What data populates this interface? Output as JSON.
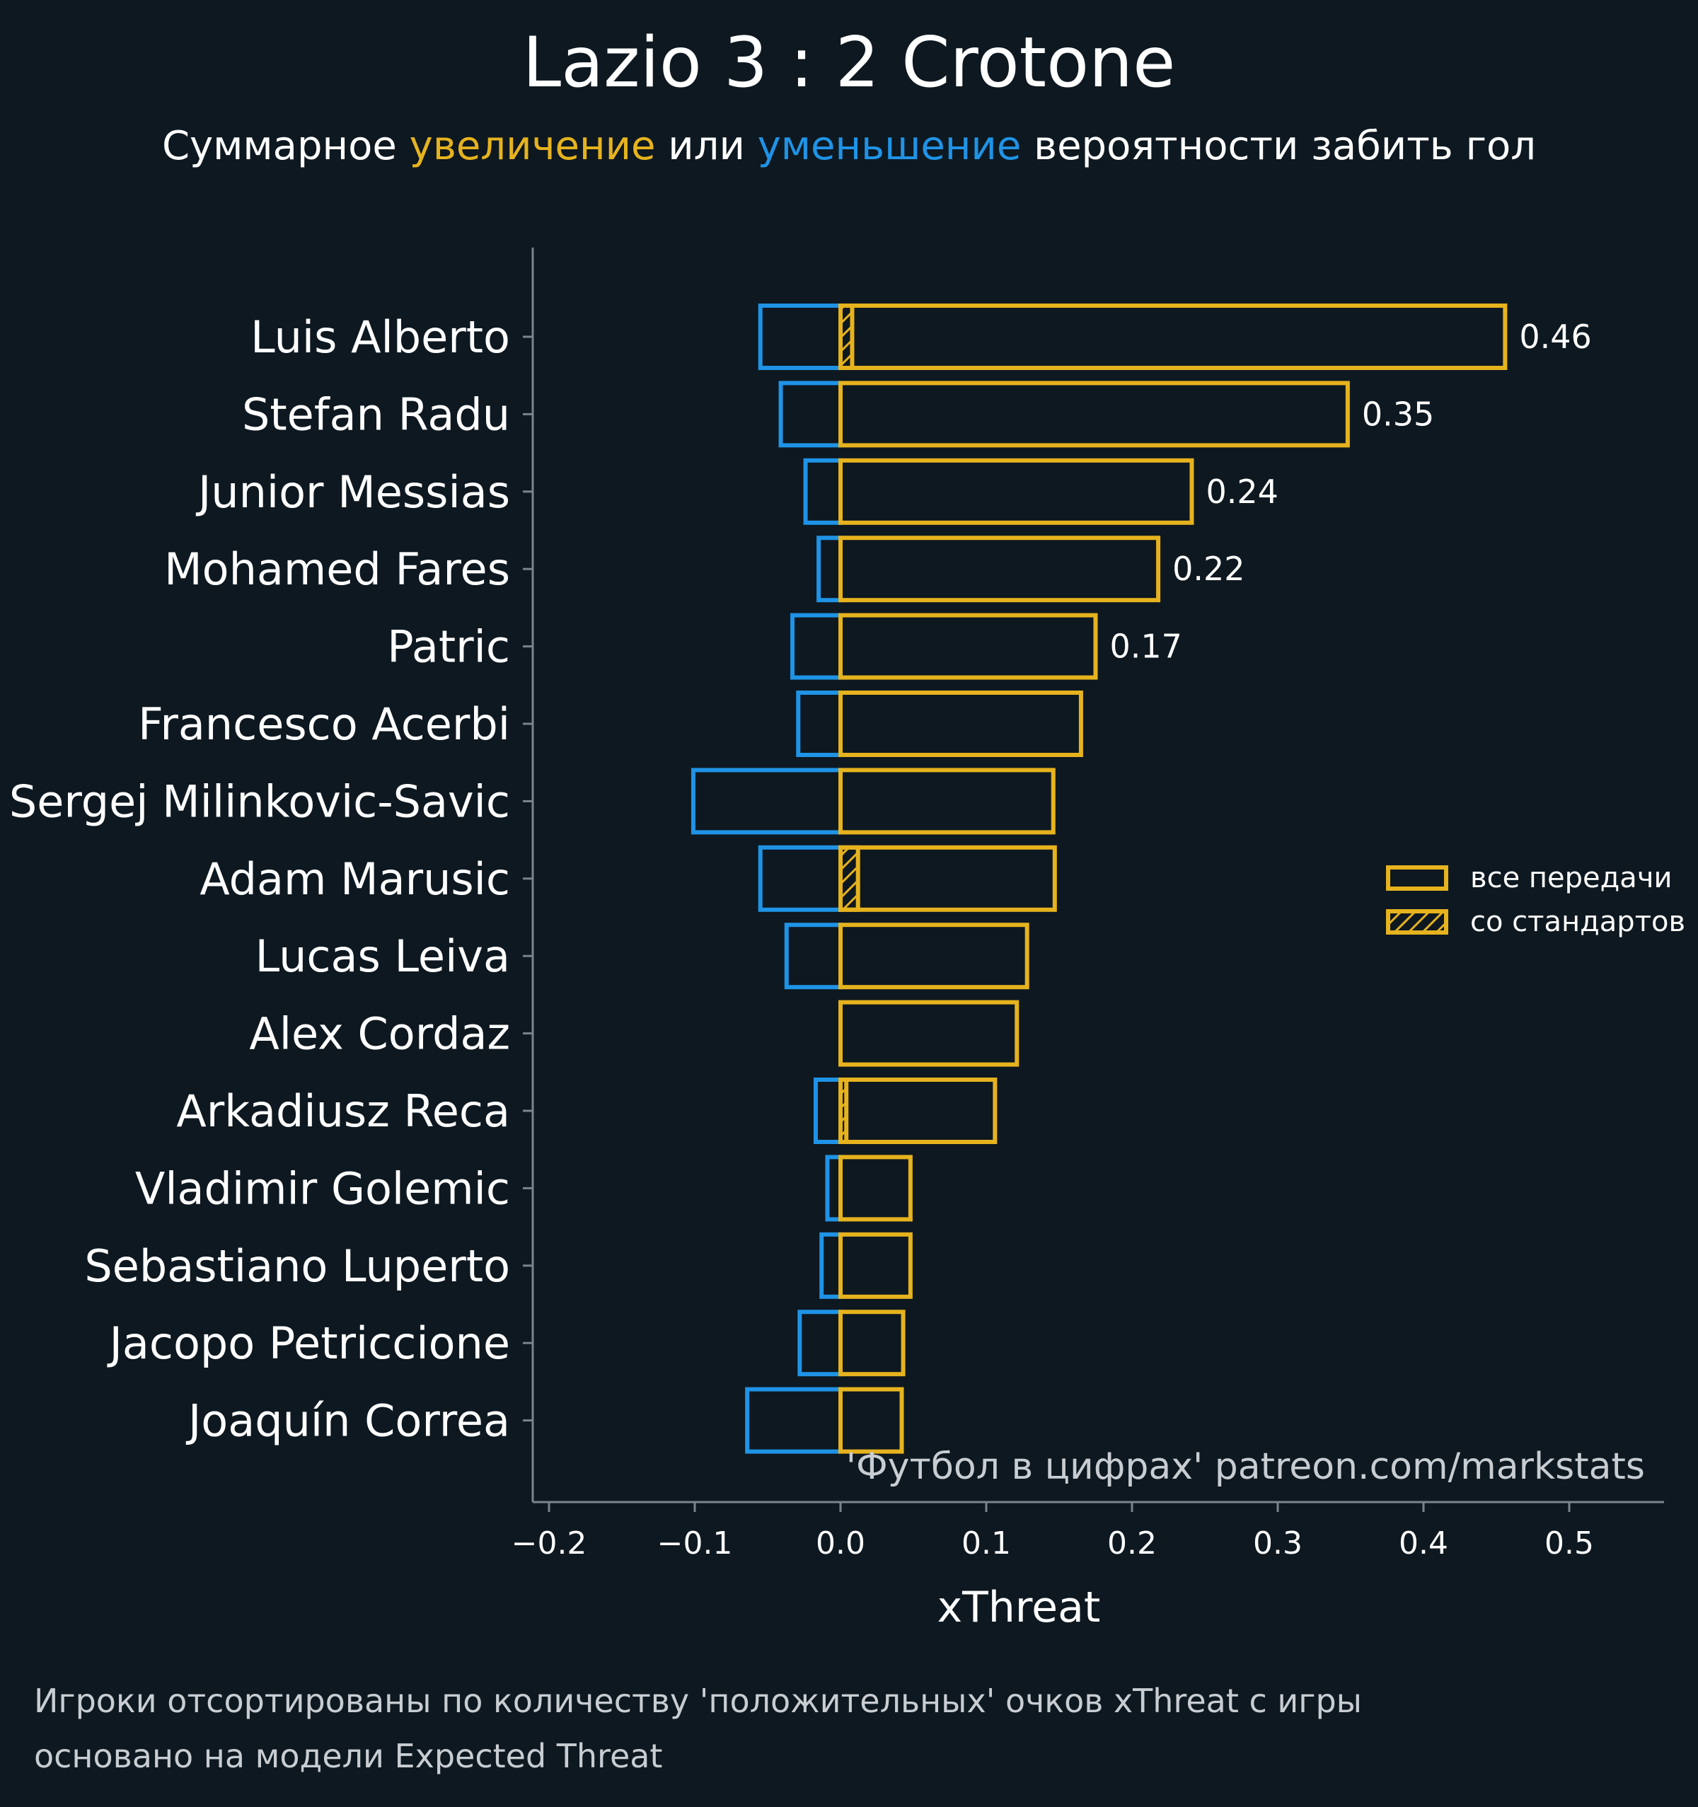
{
  "colors": {
    "background": "#0e1820",
    "text": "#ffffff",
    "muted": "#c8cdd2",
    "axis": "#7a848c",
    "positive": "#e6b31e",
    "negative": "#1f93e6"
  },
  "header": {
    "title": "Lazio 3 : 2 Crotone",
    "subtitle_parts": [
      {
        "text": "Суммарное ",
        "tone": "text"
      },
      {
        "text": "увеличение",
        "tone": "positive"
      },
      {
        "text": " или ",
        "tone": "text"
      },
      {
        "text": "уменьшение",
        "tone": "negative"
      },
      {
        "text": " вероятности забить гол",
        "tone": "text"
      }
    ]
  },
  "watermark": "'Футбол в цифрах' patreon.com/markstats",
  "footnotes": [
    "Игроки отсортированы по количеству 'положительных' очков xThreat с игры",
    "основано на модели Expected Threat"
  ],
  "legend": {
    "position": "right",
    "items": [
      {
        "label": "все передачи",
        "hatched": false
      },
      {
        "label": "со стандартов",
        "hatched": true
      }
    ]
  },
  "chart_data": {
    "type": "bar",
    "orientation": "horizontal",
    "title": "Lazio 3 : 2 Crotone",
    "xlabel": "xThreat",
    "ylabel": "",
    "xlim": [
      -0.2,
      0.56
    ],
    "xticks": [
      -0.2,
      -0.1,
      0.0,
      0.1,
      0.2,
      0.3,
      0.4,
      0.5
    ],
    "xtick_labels": [
      "−0.2",
      "−0.1",
      "0.0",
      "0.1",
      "0.2",
      "0.3",
      "0.4",
      "0.5"
    ],
    "grid": false,
    "categories": [
      "Luis Alberto",
      "Stefan Radu",
      "Junior Messias",
      "Mohamed Fares",
      "Patric",
      "Francesco Acerbi",
      "Sergej Milinkovic-Savic",
      "Adam Marusic",
      "Lucas Leiva",
      "Alex Cordaz",
      "Arkadiusz Reca",
      "Vladimir Golemic",
      "Sebastiano Luperto",
      "Jacopo Petriccione",
      "Joaquín Correa"
    ],
    "series": [
      {
        "name": "увеличение (все передачи)",
        "values": [
          0.456,
          0.348,
          0.241,
          0.218,
          0.175,
          0.165,
          0.146,
          0.147,
          0.128,
          0.121,
          0.106,
          0.048,
          0.048,
          0.043,
          0.042
        ]
      },
      {
        "name": "уменьшение (все передачи)",
        "values": [
          -0.055,
          -0.041,
          -0.024,
          -0.015,
          -0.033,
          -0.029,
          -0.101,
          -0.055,
          -0.037,
          0.0,
          -0.017,
          -0.009,
          -0.013,
          -0.028,
          -0.064
        ]
      },
      {
        "name": "увеличение (со стандартов)",
        "values": [
          0.008,
          0.0,
          0.0,
          0.0,
          0.0,
          0.0,
          0.0,
          0.012,
          0.0,
          0.0,
          0.004,
          0.0,
          0.0,
          0.0,
          0.0
        ]
      }
    ],
    "value_labels": [
      "0.46",
      "0.35",
      "0.24",
      "0.22",
      "0.17",
      "",
      "",
      "",
      "",
      "",
      "",
      "",
      "",
      "",
      ""
    ]
  }
}
